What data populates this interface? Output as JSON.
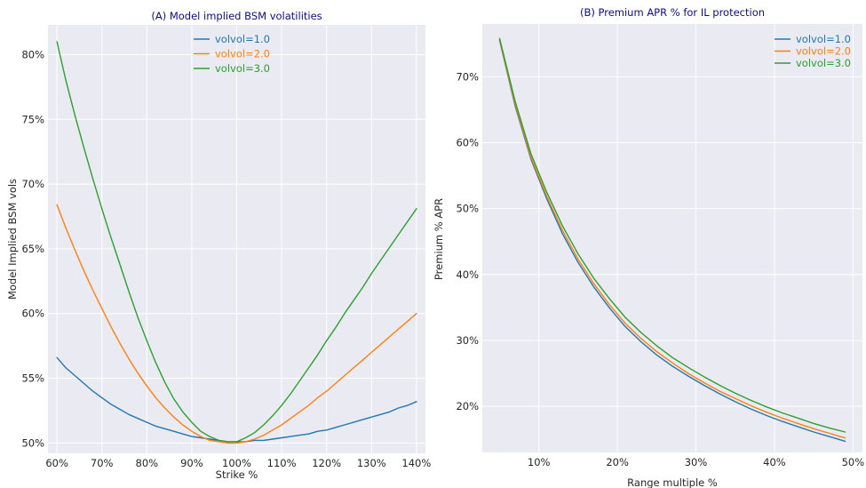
{
  "colors": {
    "blue": "#1f77b4",
    "orange": "#ff7f0e",
    "green": "#2ca02c",
    "plot_bg": "#eaeaf2",
    "title": "#0d0d8a"
  },
  "chart_data": [
    {
      "type": "line",
      "title": "(A) Model implied BSM volatilities",
      "xlabel": "Strike %",
      "ylabel": "Model Implied BSM vols",
      "xlim": [
        58,
        142
      ],
      "ylim": [
        49.2,
        82.3
      ],
      "xticks": [
        60,
        70,
        80,
        90,
        100,
        110,
        120,
        130,
        140
      ],
      "xtick_labels": [
        "60%",
        "70%",
        "80%",
        "90%",
        "100%",
        "110%",
        "120%",
        "130%",
        "140%"
      ],
      "yticks": [
        50,
        55,
        60,
        65,
        70,
        75,
        80
      ],
      "ytick_labels": [
        "50%",
        "55%",
        "60%",
        "65%",
        "70%",
        "75%",
        "80%"
      ],
      "legend_position": "top-center",
      "x": [
        60,
        62,
        64,
        66,
        68,
        70,
        72,
        74,
        76,
        78,
        80,
        82,
        84,
        86,
        88,
        90,
        92,
        94,
        96,
        98,
        100,
        102,
        104,
        106,
        108,
        110,
        112,
        114,
        116,
        118,
        120,
        122,
        124,
        126,
        128,
        130,
        132,
        134,
        136,
        138,
        140
      ],
      "series": [
        {
          "name": "volvol=1.0",
          "color": "#1f77b4",
          "values": [
            56.6,
            55.8,
            55.2,
            54.6,
            54.0,
            53.5,
            53.0,
            52.6,
            52.2,
            51.9,
            51.6,
            51.3,
            51.1,
            50.9,
            50.7,
            50.5,
            50.4,
            50.3,
            50.2,
            50.1,
            50.1,
            50.1,
            50.2,
            50.2,
            50.3,
            50.4,
            50.5,
            50.6,
            50.7,
            50.9,
            51.0,
            51.2,
            51.4,
            51.6,
            51.8,
            52.0,
            52.2,
            52.4,
            52.7,
            52.9,
            53.2
          ]
        },
        {
          "name": "volvol=2.0",
          "color": "#ff7f0e",
          "values": [
            68.4,
            66.6,
            64.9,
            63.3,
            61.8,
            60.4,
            59.0,
            57.7,
            56.5,
            55.4,
            54.4,
            53.5,
            52.7,
            52.0,
            51.4,
            50.9,
            50.5,
            50.2,
            50.1,
            50.0,
            50.0,
            50.1,
            50.3,
            50.6,
            51.0,
            51.4,
            51.9,
            52.4,
            52.9,
            53.5,
            54.0,
            54.6,
            55.2,
            55.8,
            56.4,
            57.0,
            57.6,
            58.2,
            58.8,
            59.4,
            60.0
          ]
        },
        {
          "name": "volvol=3.0",
          "color": "#2ca02c",
          "values": [
            81.0,
            78.0,
            75.3,
            72.8,
            70.4,
            68.1,
            65.9,
            63.8,
            61.7,
            59.7,
            57.9,
            56.2,
            54.7,
            53.4,
            52.4,
            51.6,
            50.9,
            50.5,
            50.2,
            50.1,
            50.1,
            50.4,
            50.8,
            51.4,
            52.1,
            52.9,
            53.8,
            54.8,
            55.8,
            56.8,
            57.9,
            58.9,
            60.0,
            61.0,
            62.0,
            63.1,
            64.1,
            65.1,
            66.1,
            67.1,
            68.1
          ]
        }
      ]
    },
    {
      "type": "line",
      "title": "(B) Premium APR % for IL protection",
      "xlabel": "Range multiple %",
      "ylabel": "Premium % APR",
      "xlim": [
        2.8,
        51.2
      ],
      "ylim": [
        13.0,
        78.0
      ],
      "xticks": [
        10,
        20,
        30,
        40,
        50
      ],
      "xtick_labels": [
        "10%",
        "20%",
        "30%",
        "40%",
        "50%"
      ],
      "yticks": [
        20,
        30,
        40,
        50,
        60,
        70
      ],
      "ytick_labels": [
        "20%",
        "30%",
        "40%",
        "50%",
        "60%",
        "70%"
      ],
      "legend_position": "top-right",
      "x": [
        5,
        7,
        9,
        11,
        13,
        15,
        17,
        19,
        21,
        23,
        25,
        27,
        29,
        31,
        33,
        35,
        37,
        39,
        41,
        43,
        45,
        47,
        49
      ],
      "series": [
        {
          "name": "volvol=1.0",
          "color": "#1f77b4",
          "values": [
            75.5,
            65.5,
            57.5,
            51.5,
            46.2,
            41.8,
            38.1,
            34.9,
            32.1,
            29.8,
            27.8,
            26.1,
            24.6,
            23.2,
            21.9,
            20.7,
            19.6,
            18.6,
            17.7,
            16.9,
            16.1,
            15.4,
            14.7
          ]
        },
        {
          "name": "volvol=2.0",
          "color": "#ff7f0e",
          "values": [
            75.6,
            65.8,
            57.8,
            51.9,
            46.7,
            42.3,
            38.6,
            35.4,
            32.6,
            30.3,
            28.3,
            26.6,
            25.0,
            23.6,
            22.3,
            21.2,
            20.1,
            19.1,
            18.2,
            17.4,
            16.6,
            15.9,
            15.2
          ]
        },
        {
          "name": "volvol=3.0",
          "color": "#2ca02c",
          "values": [
            75.8,
            66.2,
            58.3,
            52.5,
            47.4,
            43.1,
            39.4,
            36.3,
            33.5,
            31.2,
            29.2,
            27.4,
            25.9,
            24.5,
            23.2,
            22.0,
            20.9,
            19.9,
            19.0,
            18.2,
            17.4,
            16.7,
            16.1
          ]
        }
      ]
    }
  ]
}
